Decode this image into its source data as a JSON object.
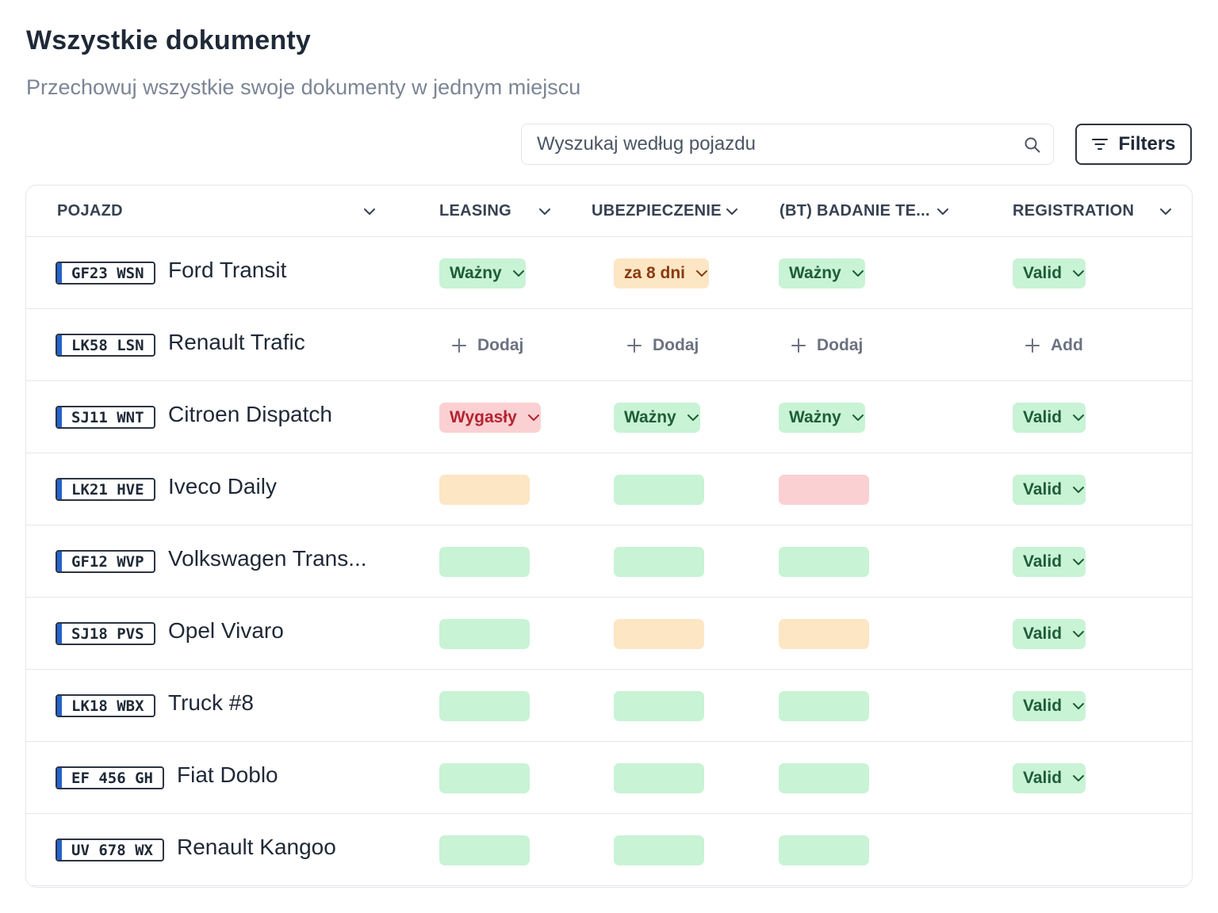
{
  "header": {
    "title": "Wszystkie dokumenty",
    "subtitle": "Przechowuj wszystkie swoje dokumenty w jednym miejscu"
  },
  "search": {
    "placeholder": "Wyszukaj według pojazdu",
    "icon": "search-icon"
  },
  "filters": {
    "label": "Filters",
    "icon": "filter-icon"
  },
  "table": {
    "columns": [
      {
        "key": "pojazd",
        "label": "POJAZD"
      },
      {
        "key": "leasing",
        "label": "LEASING"
      },
      {
        "key": "ubezpieczenie",
        "label": "UBEZPIECZENIE"
      },
      {
        "key": "badanie",
        "label": "(BT) BADANIE TE..."
      },
      {
        "key": "registration",
        "label": "REGISTRATION"
      }
    ],
    "rows": [
      {
        "plate": "GF23 WSN",
        "name": "Ford Transit"
      },
      {
        "plate": "LK58 LSN",
        "name": "Renault Trafic"
      },
      {
        "plate": "SJ11 WNT",
        "name": "Citroen Dispatch"
      },
      {
        "plate": "LK21 HVE",
        "name": "Iveco Daily"
      },
      {
        "plate": "GF12 WVP",
        "name": "Volkswagen Trans..."
      },
      {
        "plate": "SJ18 PVS",
        "name": "Opel Vivaro"
      },
      {
        "plate": "LK18 WBX",
        "name": "Truck #8"
      },
      {
        "plate": "EF 456 GH",
        "name": "Fiat Doblo"
      },
      {
        "plate": "UV 678 WX",
        "name": "Renault Kangoo"
      }
    ],
    "cells": {
      "r0": {
        "leasing": {
          "label": "Ważny",
          "status": "green"
        },
        "ubezpieczenie": {
          "label": "za 8 dni",
          "status": "orange"
        },
        "badanie": {
          "label": "Ważny",
          "status": "green"
        },
        "registration": {
          "label": "Valid",
          "status": "green"
        }
      },
      "r1": {
        "leasing": {
          "label": "Dodaj"
        },
        "ubezpieczenie": {
          "label": "Dodaj"
        },
        "badanie": {
          "label": "Dodaj"
        },
        "registration": {
          "label": "Add"
        }
      },
      "r2": {
        "leasing": {
          "label": "Wygasły",
          "status": "red"
        },
        "ubezpieczenie": {
          "label": "Ważny",
          "status": "green"
        },
        "badanie": {
          "label": "Ważny",
          "status": "green"
        },
        "registration": {
          "label": "Valid",
          "status": "green"
        }
      },
      "r3": {
        "registration": {
          "label": "Valid",
          "status": "green"
        }
      },
      "r4": {
        "registration": {
          "label": "Valid",
          "status": "green"
        }
      },
      "r5": {
        "registration": {
          "label": "Valid",
          "status": "green"
        }
      },
      "r6": {
        "registration": {
          "label": "Valid",
          "status": "green"
        }
      },
      "r7": {
        "registration": {
          "label": "Valid",
          "status": "green"
        }
      }
    },
    "blank_pill_status": {
      "r3": [
        "orange",
        "green",
        "red"
      ],
      "r4": [
        "green",
        "green",
        "green"
      ],
      "r5": [
        "green",
        "orange",
        "orange"
      ],
      "r6": [
        "green",
        "green",
        "green"
      ],
      "r7": [
        "green",
        "green",
        "green"
      ],
      "r8": [
        "green",
        "green",
        "green"
      ]
    }
  },
  "colors": {
    "green_bg": "#c8f3d5",
    "green_text": "#1f5c39",
    "orange_bg": "#fde6c4",
    "orange_text": "#8a3a0f",
    "red_bg": "#fbd0d3",
    "red_text": "#b3232e",
    "plate_stripe": "#2563c9"
  }
}
